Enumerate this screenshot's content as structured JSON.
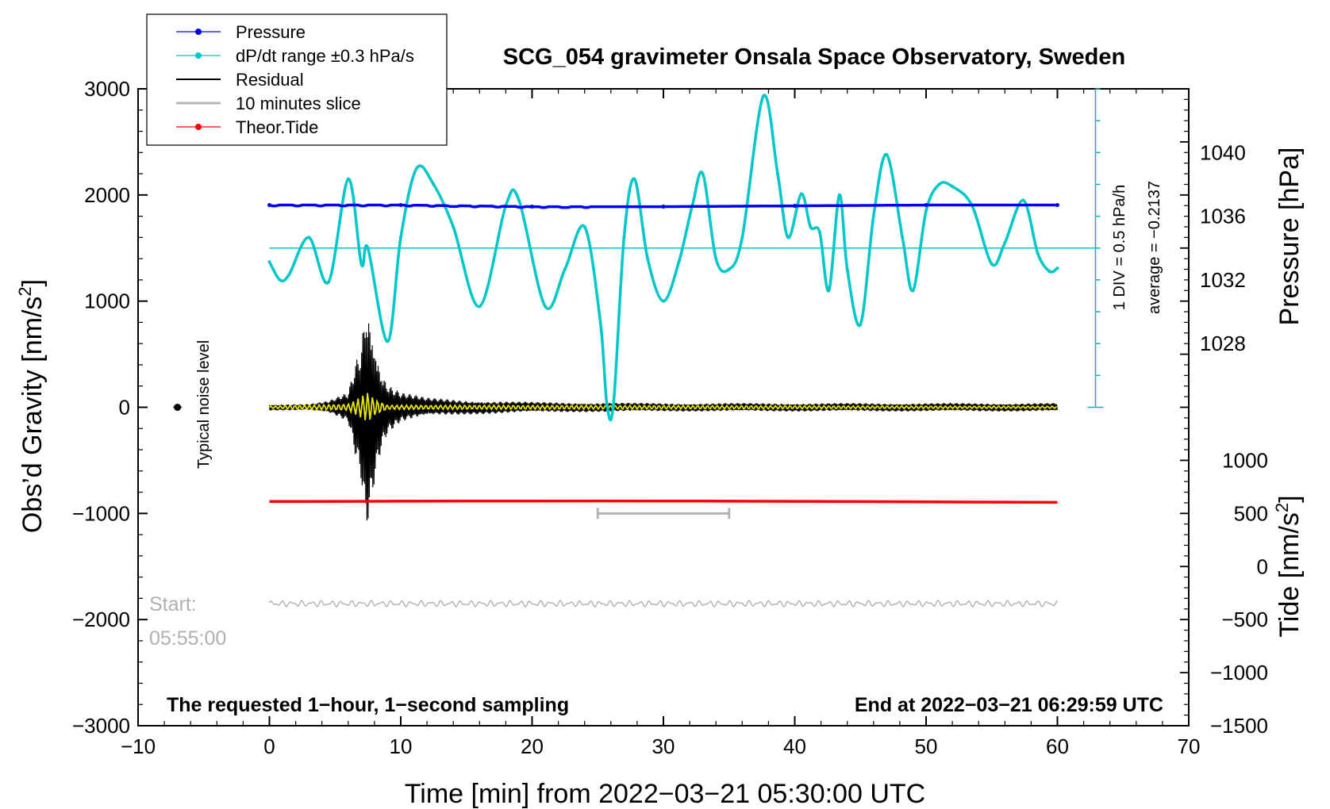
{
  "chart_data": {
    "type": "line",
    "title": "SCG_054 gravimeter Onsala Space Observatory, Sweden",
    "xlabel": "Time [min] from 2022−03−21 05:30:00 UTC",
    "xlim": [
      -10,
      70
    ],
    "xticks": [
      -10,
      0,
      10,
      20,
      30,
      40,
      50,
      60,
      70
    ],
    "xtick_labels": [
      "−10",
      "0",
      "10",
      "20",
      "30",
      "40",
      "50",
      "60",
      "70"
    ],
    "left_axis": {
      "label_main": "Obs’d Gravity [nm/s",
      "label_sup": "2",
      "label_end": "]",
      "ylim": [
        -3000,
        3000
      ],
      "ticks": [
        3000,
        2000,
        1000,
        0,
        -1000,
        -2000,
        -3000
      ],
      "tick_labels": [
        "3000",
        "2000",
        "1000",
        "0",
        "−1000",
        "−2000",
        "−3000"
      ]
    },
    "pressure_axis": {
      "label": "Pressure [hPa]",
      "ticks": [
        1040,
        1036,
        1032,
        1028
      ],
      "tick_labels": [
        "1040",
        "1036",
        "1032",
        "1028"
      ],
      "gravity_at_1040": 2400,
      "gravity_per_hpa": 150
    },
    "tide_axis": {
      "label_main": "Tide [nm/s",
      "label_sup": "2",
      "label_end": "]",
      "ticks": [
        1000,
        500,
        0,
        -500,
        -1000,
        -1500
      ],
      "tick_labels": [
        "1000",
        "500",
        "0",
        "−500",
        "−1000",
        "−1500"
      ],
      "gravity_at_0": -1500,
      "gravity_per_unit": 1.0
    },
    "dpdt_scale": {
      "label_div": "1 DIV = 0.5 hPa/h",
      "label_avg": "average = −0.2137",
      "x": 62.9,
      "bottom": 0,
      "top": 3000,
      "tick_step": 300
    },
    "legend": {
      "position": "top-left",
      "entries": [
        {
          "label": "Pressure",
          "color": "#0000ff",
          "marker": true
        },
        {
          "label": "dP/dt range ±0.3 hPa/s",
          "color": "#00c8c8",
          "marker": true
        },
        {
          "label": "Residual",
          "color": "#000000",
          "marker": false
        },
        {
          "label": "10 minutes slice",
          "color": "#b4b4b4",
          "marker": false
        },
        {
          "label": "Theor.Tide",
          "color": "#ff0000",
          "marker": true
        }
      ]
    },
    "series": [
      {
        "name": "Pressure",
        "color": "#0000ff",
        "unit": "hPa",
        "x": [
          0,
          10,
          20,
          30,
          40,
          50,
          60
        ],
        "values": [
          1036.7,
          1036.7,
          1036.6,
          1036.6,
          1036.65,
          1036.7,
          1036.7
        ]
      },
      {
        "name": "dP/dt",
        "color": "#00c8c8",
        "unit": "nm/s2 (plotted)",
        "reference_line": 1500,
        "x": [
          0,
          0.8,
          1.5,
          3,
          4.5,
          6,
          7,
          7.5,
          9,
          10,
          11.2,
          12.5,
          14,
          16,
          18,
          19,
          21,
          22.5,
          24,
          25.2,
          25.7,
          26.2,
          27,
          27.8,
          28.8,
          30,
          31.2,
          32.2,
          33,
          34,
          35,
          36,
          37.6,
          38.7,
          39.5,
          40.5,
          41.2,
          41.9,
          42.6,
          43.4,
          44,
          45,
          46,
          47,
          48.2,
          49,
          50,
          51,
          52,
          53.5,
          55,
          56,
          57.4,
          58.5,
          59.4,
          60
        ],
        "values": [
          1370,
          1200,
          1250,
          1600,
          1180,
          2150,
          1350,
          1500,
          620,
          1600,
          2250,
          2100,
          1700,
          950,
          1900,
          1950,
          950,
          1300,
          1700,
          800,
          30,
          30,
          1600,
          2150,
          1400,
          1000,
          1380,
          1900,
          2200,
          1400,
          1300,
          1600,
          2930,
          2200,
          1600,
          2010,
          1700,
          1650,
          1100,
          2000,
          1300,
          780,
          1800,
          2380,
          1600,
          1100,
          1850,
          2100,
          2080,
          1900,
          1350,
          1550,
          1950,
          1450,
          1280,
          1310
        ]
      },
      {
        "name": "Residual",
        "color": "#000000",
        "x": [
          0,
          3,
          4.5,
          6,
          6.5,
          7,
          7.3,
          7.6,
          8,
          8.5,
          9,
          10,
          12,
          15,
          20,
          30,
          40,
          50,
          60
        ],
        "amplitude": [
          30,
          30,
          60,
          150,
          450,
          700,
          1150,
          1050,
          700,
          400,
          250,
          150,
          90,
          70,
          50,
          40,
          40,
          40,
          40
        ]
      },
      {
        "name": "Filtered",
        "color": "#e6e600",
        "x": [
          0,
          6,
          7,
          7.5,
          8,
          9,
          60
        ],
        "amplitude": [
          10,
          30,
          100,
          140,
          80,
          20,
          10
        ]
      },
      {
        "name": "10 minutes slice",
        "color": "#b4b4b4",
        "center": -1850,
        "amplitude": 30,
        "x_range": [
          0,
          60
        ],
        "bracket": [
          25,
          35
        ],
        "bracket_y": -1000,
        "start_label": "Start:",
        "start_time": "05:55:00"
      },
      {
        "name": "Theor.Tide",
        "color": "#ff0000",
        "unit": "nm/s2 (tide axis)",
        "x": [
          0,
          10,
          20,
          30,
          40,
          50,
          60
        ],
        "values": [
          612,
          615,
          617,
          617,
          614,
          609,
          604
        ]
      }
    ],
    "noise_marker": {
      "x": -7,
      "y": 0,
      "label": "Typical noise level"
    },
    "annotations": {
      "footer_left": "The requested 1−hour, 1−second sampling",
      "footer_right": "End at 2022−03−21 06:29:59 UTC"
    }
  }
}
